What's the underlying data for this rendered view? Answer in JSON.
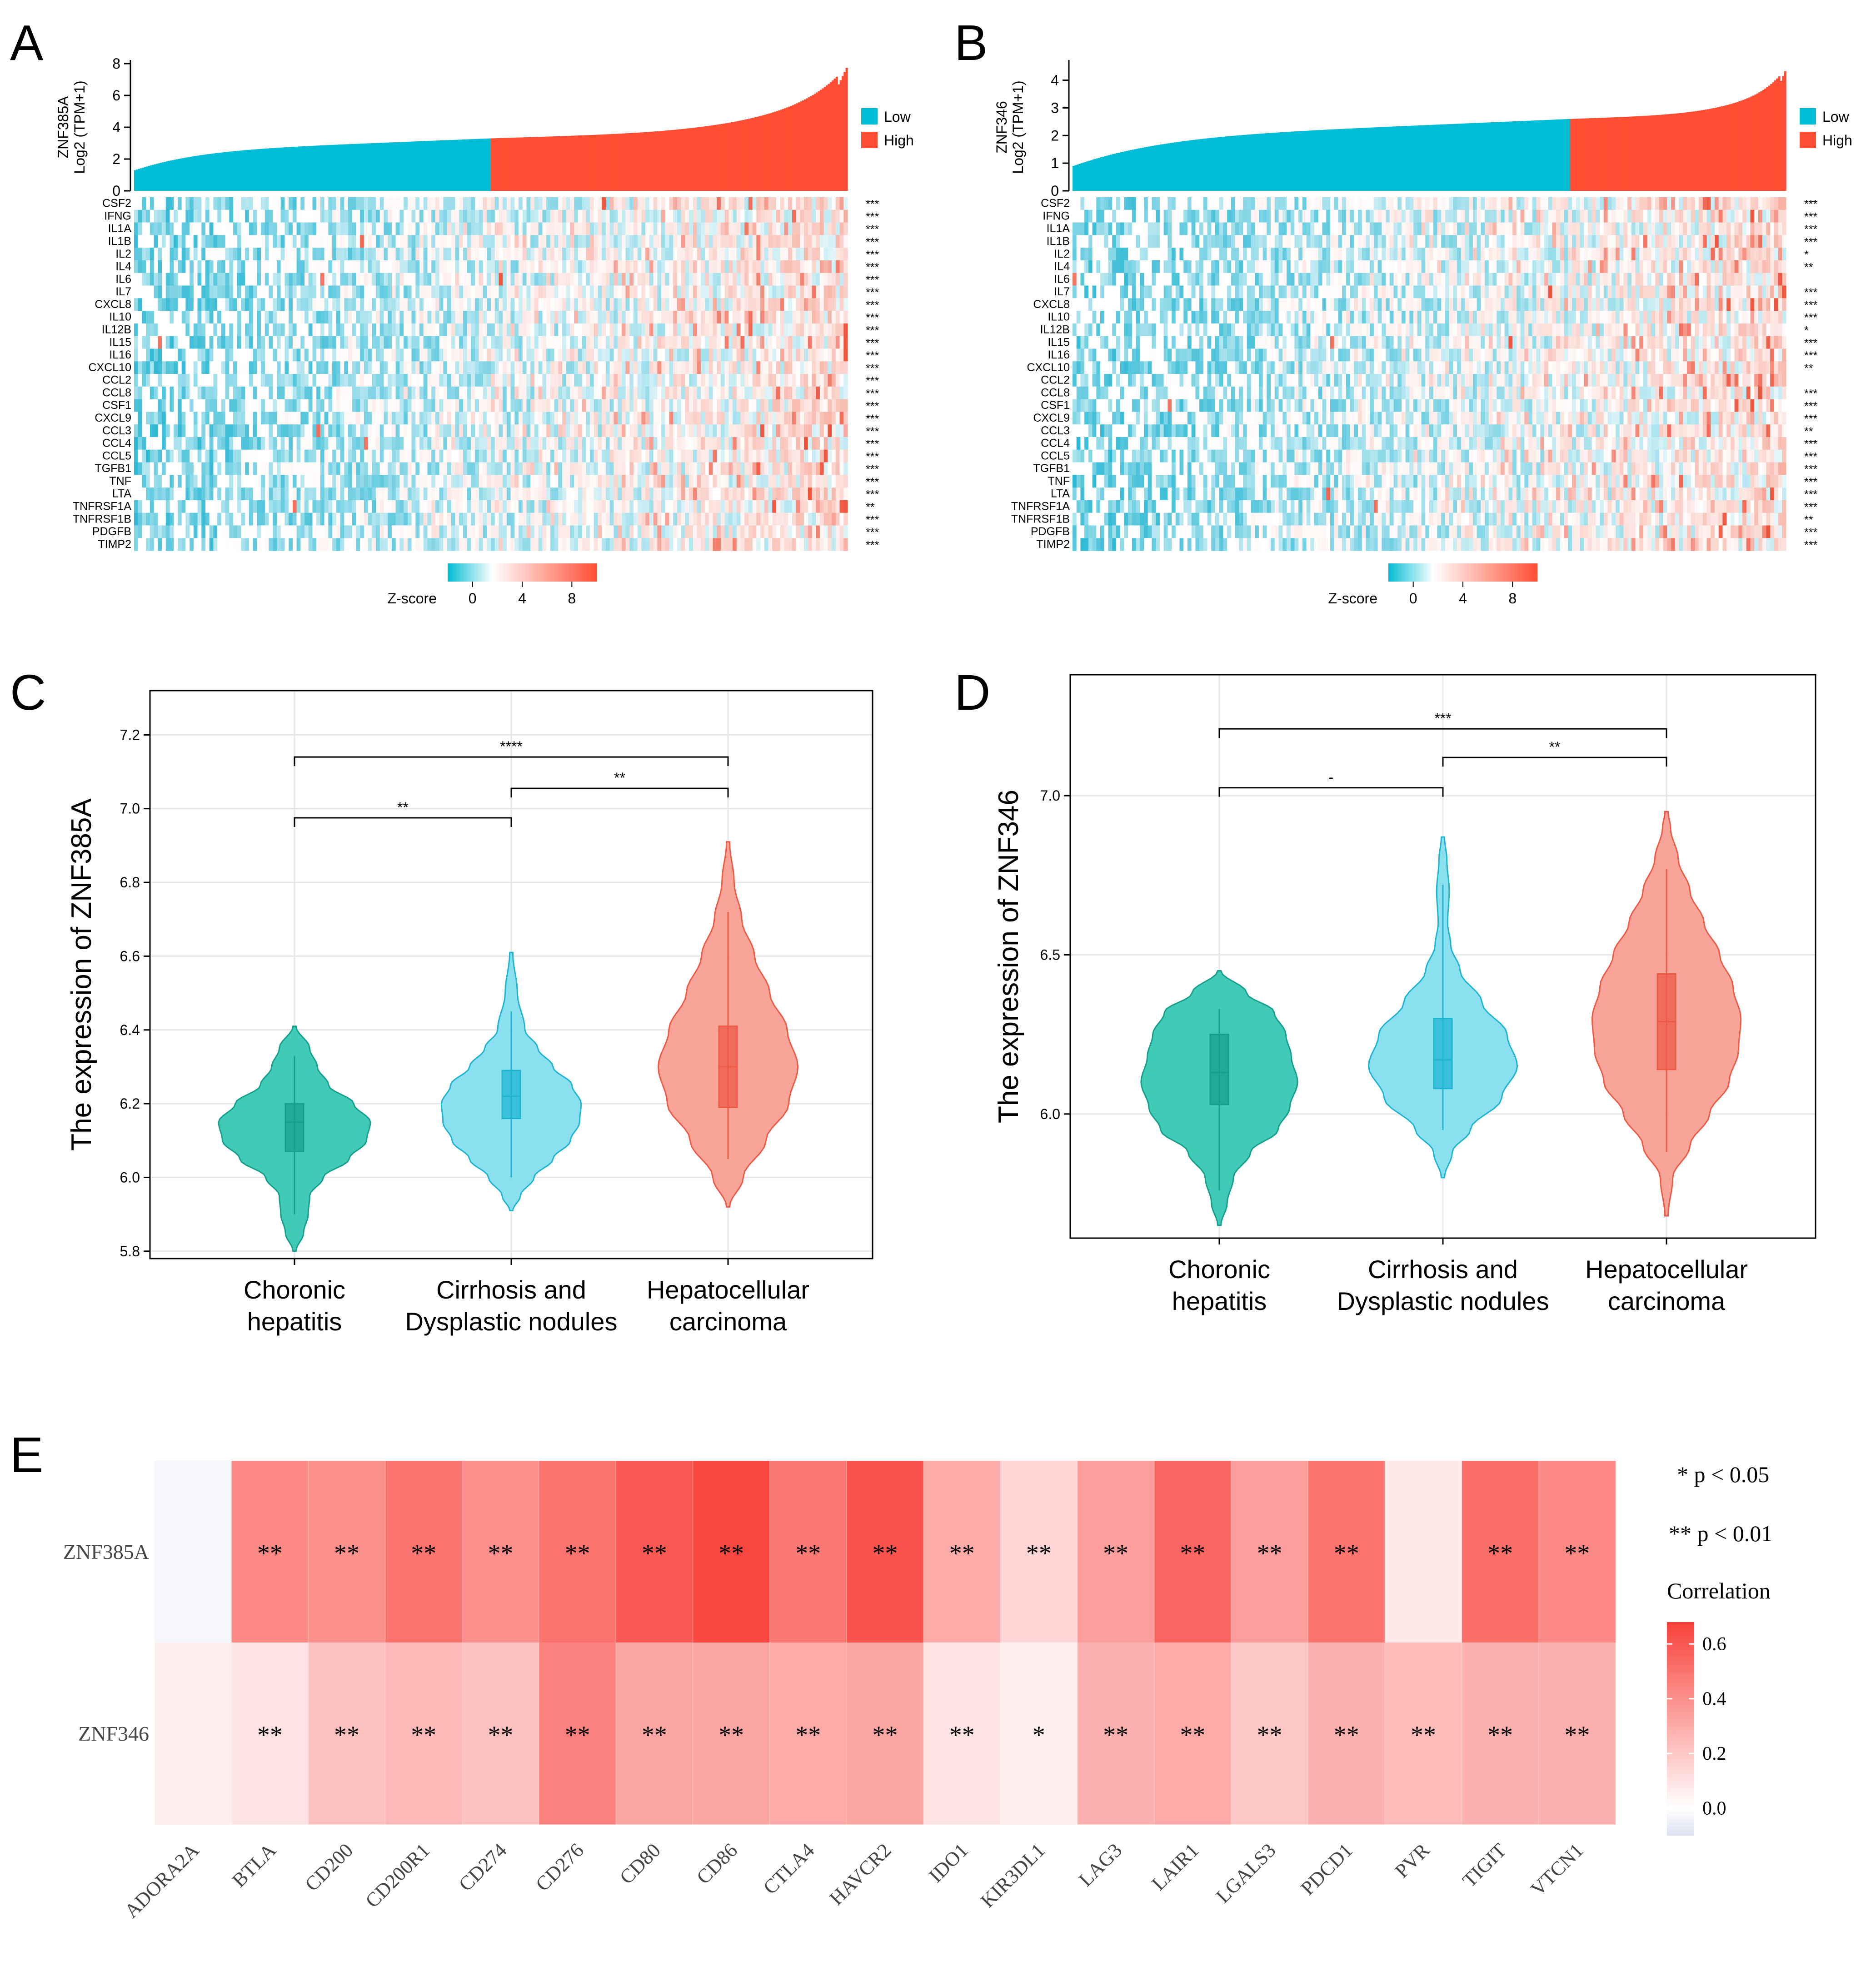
{
  "figure": {
    "panels": [
      {
        "letter": "A"
      },
      {
        "letter": "B"
      },
      {
        "letter": "C"
      },
      {
        "letter": "D"
      },
      {
        "letter": "E"
      }
    ]
  },
  "colors": {
    "low": "#00BCD4",
    "high": "#FF4E33",
    "teal": "#2EC4B0",
    "teal_dark": "#15A08C",
    "cyan": "#7DDDEC",
    "cyan_dark": "#1FB5D0",
    "salmon": "#F79A8E",
    "salmon_dark": "#EE5A45",
    "heat_neg": "#DDE1EF",
    "heat_zero": "#FFFFFF",
    "heat_max": "#F8413A"
  },
  "chart_data": [
    {
      "type": "heatmap",
      "panel": "A",
      "gene": "ZNF385A",
      "title": "",
      "ylabel_line1": "ZNF385A",
      "ylabel_line2": "Log2 (TPM+1)",
      "bar_axis": {
        "ticks": [
          "0",
          "2",
          "4",
          "6",
          "8"
        ],
        "ylim": [
          0,
          8
        ]
      },
      "bar_profile": {
        "min": 1.3,
        "split": 3.3,
        "max": 8.0,
        "split_fraction": 0.5
      },
      "legend": [
        {
          "label": "Low",
          "color": "#00BCD4"
        },
        {
          "label": "High",
          "color": "#FF4E33"
        }
      ],
      "rows": [
        "CSF2",
        "IFNG",
        "IL1A",
        "IL1B",
        "IL2",
        "IL4",
        "IL6",
        "IL7",
        "CXCL8",
        "IL10",
        "IL12B",
        "IL15",
        "IL16",
        "CXCL10",
        "CCL2",
        "CCL8",
        "CSF1",
        "CXCL9",
        "CCL3",
        "CCL4",
        "CCL5",
        "TGFB1",
        "TNF",
        "LTA",
        "TNFRSF1A",
        "TNFRSF1B",
        "PDGFB",
        "TIMP2"
      ],
      "significance": [
        "***",
        "***",
        "***",
        "***",
        "***",
        "***",
        "***",
        "***",
        "***",
        "***",
        "***",
        "***",
        "***",
        "***",
        "***",
        "***",
        "***",
        "***",
        "***",
        "***",
        "***",
        "***",
        "***",
        "***",
        "**",
        "***",
        "***",
        "***"
      ],
      "zscore": {
        "label": "Z-score",
        "ticks": [
          "0",
          "4",
          "8"
        ],
        "range": [
          -2,
          10
        ]
      }
    },
    {
      "type": "heatmap",
      "panel": "B",
      "gene": "ZNF346",
      "title": "",
      "ylabel_line1": "ZNF346",
      "ylabel_line2": "Log2 (TPM+1)",
      "bar_axis": {
        "ticks": [
          "0",
          "1",
          "2",
          "3",
          "4"
        ],
        "ylim": [
          0,
          4.6
        ]
      },
      "bar_profile": {
        "min": 0.9,
        "split": 2.6,
        "max": 4.5,
        "split_fraction": 0.7
      },
      "legend": [
        {
          "label": "Low",
          "color": "#00BCD4"
        },
        {
          "label": "High",
          "color": "#FF4E33"
        }
      ],
      "rows": [
        "CSF2",
        "IFNG",
        "IL1A",
        "IL1B",
        "IL2",
        "IL4",
        "IL6",
        "IL7",
        "CXCL8",
        "IL10",
        "IL12B",
        "IL15",
        "IL16",
        "CXCL10",
        "CCL2",
        "CCL8",
        "CSF1",
        "CXCL9",
        "CCL3",
        "CCL4",
        "CCL5",
        "TGFB1",
        "TNF",
        "LTA",
        "TNFRSF1A",
        "TNFRSF1B",
        "PDGFB",
        "TIMP2"
      ],
      "significance": [
        "***",
        "***",
        "***",
        "***",
        "*",
        "**",
        "",
        "***",
        "***",
        "***",
        "*",
        "***",
        "***",
        "**",
        "",
        "***",
        "***",
        "***",
        "**",
        "***",
        "***",
        "***",
        "***",
        "***",
        "***",
        "**",
        "***",
        "***"
      ],
      "zscore": {
        "label": "Z-score",
        "ticks": [
          "0",
          "4",
          "8"
        ],
        "range": [
          -2,
          10
        ]
      }
    },
    {
      "type": "violin",
      "panel": "C",
      "ylabel": "The expression of ZNF385A",
      "ylim": [
        5.78,
        7.32
      ],
      "yticks": [
        "5.8",
        "6.0",
        "6.2",
        "6.4",
        "6.6",
        "6.8",
        "7.0",
        "7.2"
      ],
      "categories": [
        {
          "line1": "Choronic",
          "line2": "hepatitis",
          "min": 5.8,
          "max": 6.41,
          "q1": 6.07,
          "median": 6.15,
          "q3": 6.2,
          "wlo": 5.9,
          "whi": 6.33,
          "shape": [
            [
              5.8,
              0.02
            ],
            [
              5.85,
              0.12
            ],
            [
              5.9,
              0.18
            ],
            [
              5.95,
              0.2
            ],
            [
              6.0,
              0.38
            ],
            [
              6.05,
              0.72
            ],
            [
              6.1,
              0.95
            ],
            [
              6.15,
              1.0
            ],
            [
              6.2,
              0.78
            ],
            [
              6.25,
              0.45
            ],
            [
              6.3,
              0.3
            ],
            [
              6.35,
              0.2
            ],
            [
              6.41,
              0.02
            ]
          ]
        },
        {
          "line1": "Cirrhosis and",
          "line2": "Dysplastic nodules",
          "min": 5.91,
          "max": 6.61,
          "q1": 6.16,
          "median": 6.22,
          "q3": 6.29,
          "wlo": 6.0,
          "whi": 6.45,
          "shape": [
            [
              5.91,
              0.02
            ],
            [
              5.95,
              0.12
            ],
            [
              6.0,
              0.3
            ],
            [
              6.05,
              0.55
            ],
            [
              6.1,
              0.78
            ],
            [
              6.15,
              0.9
            ],
            [
              6.2,
              0.92
            ],
            [
              6.25,
              0.8
            ],
            [
              6.3,
              0.55
            ],
            [
              6.35,
              0.35
            ],
            [
              6.4,
              0.18
            ],
            [
              6.5,
              0.08
            ],
            [
              6.61,
              0.02
            ]
          ]
        },
        {
          "line1": "Hepatocellular",
          "line2": "carcinoma",
          "min": 5.92,
          "max": 6.91,
          "q1": 6.19,
          "median": 6.3,
          "q3": 6.41,
          "wlo": 6.05,
          "whi": 6.72,
          "shape": [
            [
              5.92,
              0.02
            ],
            [
              6.0,
              0.2
            ],
            [
              6.1,
              0.5
            ],
            [
              6.2,
              0.8
            ],
            [
              6.3,
              0.92
            ],
            [
              6.4,
              0.78
            ],
            [
              6.5,
              0.55
            ],
            [
              6.6,
              0.35
            ],
            [
              6.7,
              0.18
            ],
            [
              6.8,
              0.08
            ],
            [
              6.91,
              0.02
            ]
          ]
        }
      ],
      "comparisons": [
        {
          "from": 0,
          "to": 1,
          "label": "**",
          "y": 6.975
        },
        {
          "from": 1,
          "to": 2,
          "label": "**",
          "y": 7.055
        },
        {
          "from": 0,
          "to": 2,
          "label": "****",
          "y": 7.14
        }
      ]
    },
    {
      "type": "violin",
      "panel": "D",
      "ylabel": "The expression of ZNF346",
      "ylim": [
        5.61,
        7.38
      ],
      "yticks": [
        "6.0",
        "6.5",
        "7.0"
      ],
      "categories": [
        {
          "line1": "Choronic",
          "line2": "hepatitis",
          "min": 5.65,
          "max": 6.45,
          "q1": 6.03,
          "median": 6.13,
          "q3": 6.25,
          "wlo": 5.76,
          "whi": 6.33,
          "shape": [
            [
              5.65,
              0.02
            ],
            [
              5.72,
              0.1
            ],
            [
              5.8,
              0.18
            ],
            [
              5.88,
              0.4
            ],
            [
              5.95,
              0.75
            ],
            [
              6.02,
              0.9
            ],
            [
              6.1,
              1.0
            ],
            [
              6.18,
              0.92
            ],
            [
              6.25,
              0.85
            ],
            [
              6.32,
              0.7
            ],
            [
              6.38,
              0.35
            ],
            [
              6.45,
              0.02
            ]
          ]
        },
        {
          "line1": "Cirrhosis and",
          "line2": "Dysplastic nodules",
          "min": 5.8,
          "max": 6.87,
          "q1": 6.08,
          "median": 6.17,
          "q3": 6.3,
          "wlo": 5.95,
          "whi": 6.72,
          "shape": [
            [
              5.8,
              0.02
            ],
            [
              5.88,
              0.12
            ],
            [
              5.95,
              0.35
            ],
            [
              6.05,
              0.75
            ],
            [
              6.15,
              0.95
            ],
            [
              6.25,
              0.82
            ],
            [
              6.35,
              0.5
            ],
            [
              6.45,
              0.22
            ],
            [
              6.53,
              0.1
            ],
            [
              6.6,
              0.06
            ],
            [
              6.7,
              0.08
            ],
            [
              6.8,
              0.05
            ],
            [
              6.87,
              0.02
            ]
          ]
        },
        {
          "line1": "Hepatocellular",
          "line2": "carcinoma",
          "min": 5.68,
          "max": 6.95,
          "q1": 6.14,
          "median": 6.29,
          "q3": 6.44,
          "wlo": 5.88,
          "whi": 6.77,
          "shape": [
            [
              5.68,
              0.02
            ],
            [
              5.8,
              0.08
            ],
            [
              5.9,
              0.3
            ],
            [
              6.0,
              0.55
            ],
            [
              6.1,
              0.8
            ],
            [
              6.2,
              0.92
            ],
            [
              6.3,
              0.95
            ],
            [
              6.4,
              0.85
            ],
            [
              6.5,
              0.68
            ],
            [
              6.6,
              0.48
            ],
            [
              6.7,
              0.3
            ],
            [
              6.8,
              0.15
            ],
            [
              6.9,
              0.05
            ],
            [
              6.95,
              0.02
            ]
          ]
        }
      ],
      "comparisons": [
        {
          "from": 0,
          "to": 1,
          "label": "-",
          "y": 7.025
        },
        {
          "from": 1,
          "to": 2,
          "label": "**",
          "y": 7.12
        },
        {
          "from": 0,
          "to": 2,
          "label": "***",
          "y": 7.21
        }
      ]
    },
    {
      "type": "heatmap",
      "panel": "E",
      "columns": [
        "ADORA2A",
        "BTLA",
        "CD200",
        "CD200R1",
        "CD274",
        "CD276",
        "CD80",
        "CD86",
        "CTLA4",
        "HAVCR2",
        "IDO1",
        "KIR3DL1",
        "LAG3",
        "LAIR1",
        "LGALS3",
        "PDCD1",
        "PVR",
        "TIGIT",
        "VTCN1"
      ],
      "rows": [
        "ZNF385A",
        "ZNF346"
      ],
      "values": [
        [
          -0.02,
          0.42,
          0.4,
          0.5,
          0.4,
          0.5,
          0.6,
          0.66,
          0.48,
          0.62,
          0.3,
          0.15,
          0.35,
          0.55,
          0.35,
          0.5,
          0.08,
          0.52,
          0.42
        ],
        [
          0.06,
          0.1,
          0.22,
          0.25,
          0.22,
          0.45,
          0.32,
          0.32,
          0.3,
          0.32,
          0.1,
          0.06,
          0.28,
          0.3,
          0.2,
          0.28,
          0.24,
          0.28,
          0.28
        ]
      ],
      "stars": [
        [
          "",
          "**",
          "**",
          "**",
          "**",
          "**",
          "**",
          "**",
          "**",
          "**",
          "**",
          "**",
          "**",
          "**",
          "**",
          "**",
          "",
          "**",
          "**"
        ],
        [
          "",
          "**",
          "**",
          "**",
          "**",
          "**",
          "**",
          "**",
          "**",
          "**",
          "**",
          "*",
          "**",
          "**",
          "**",
          "**",
          "**",
          "**",
          "**"
        ]
      ],
      "legend_notes": [
        "* p < 0.05",
        "** p < 0.01"
      ],
      "colorbar": {
        "title": "Correlation",
        "ticks": [
          "0.0",
          "0.2",
          "0.4",
          "0.6"
        ],
        "range": [
          -0.1,
          0.68
        ]
      }
    }
  ]
}
